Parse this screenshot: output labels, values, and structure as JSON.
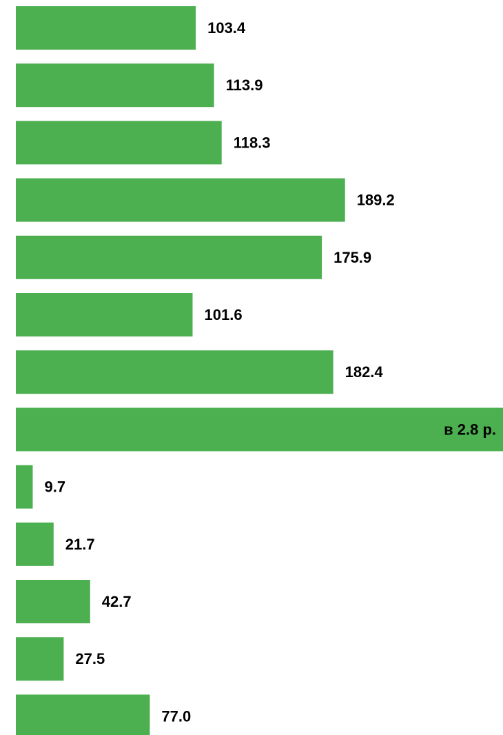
{
  "colors": {
    "bar": "#4CAF50",
    "label": "#000000",
    "background": "#FFFFFF"
  },
  "chart_data": {
    "type": "bar",
    "orientation": "horizontal",
    "grid": false,
    "legend": "none",
    "values": [
      103.4,
      113.9,
      118.3,
      189.2,
      175.9,
      101.6,
      182.4,
      280,
      9.7,
      21.7,
      42.7,
      27.5,
      77.0
    ],
    "labels": [
      "103.4",
      "113.9",
      "118.3",
      "189.2",
      "175.9",
      "101.6",
      "182.4",
      "в 2.8 р.",
      "9.7",
      "21.7",
      "42.7",
      "27.5",
      "77.0"
    ],
    "xlim": [
      0,
      280
    ]
  }
}
